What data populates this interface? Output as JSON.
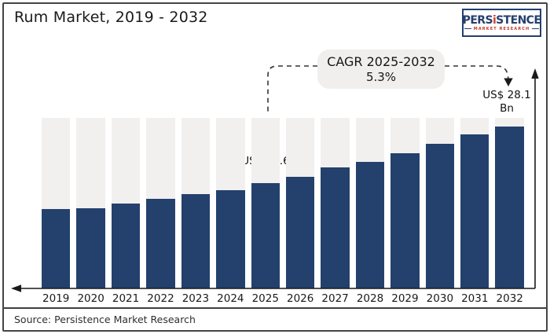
{
  "header": {
    "title": "Rum Market, 2019 - 2032"
  },
  "logo": {
    "brand_pre": "PERS",
    "brand_i": "i",
    "brand_post": "STENCE",
    "tagline": "MARKET RESEARCH",
    "navy": "#25406e",
    "red": "#d23f34"
  },
  "annotations": {
    "cagr_title": "CAGR 2025-2032",
    "cagr_value": "5.3%",
    "label_2025": {
      "line1": "US$ 19.6",
      "line2": "Bn"
    },
    "label_2032": {
      "line1": "US$ 28.1",
      "line2": "Bn"
    }
  },
  "footer": {
    "source": "Source: Persistence Market Research"
  },
  "chart_data": {
    "type": "bar",
    "title": "Rum Market, 2019 - 2032",
    "unit": "US$ Bn",
    "categories": [
      "2019",
      "2020",
      "2021",
      "2022",
      "2023",
      "2024",
      "2025",
      "2026",
      "2027",
      "2028",
      "2029",
      "2030",
      "2031",
      "2032"
    ],
    "values": [
      15.6,
      15.8,
      16.4,
      17.2,
      17.9,
      18.5,
      19.6,
      20.5,
      21.9,
      22.8,
      24.1,
      25.5,
      26.9,
      28.1
    ],
    "labeled_points": [
      {
        "category": "2025",
        "label": "US$ 19.6 Bn"
      },
      {
        "category": "2032",
        "label": "US$ 28.1 Bn"
      }
    ],
    "annotation": {
      "text": "CAGR 2025-2032",
      "value": "5.3%",
      "applies_to": "2025-2032"
    },
    "ylim": [
      0,
      30
    ],
    "legend": "none",
    "grid": "off",
    "colors": {
      "bar": "#24416d",
      "track": "#f2efef",
      "annotation_bg": "#f1eeee"
    }
  }
}
